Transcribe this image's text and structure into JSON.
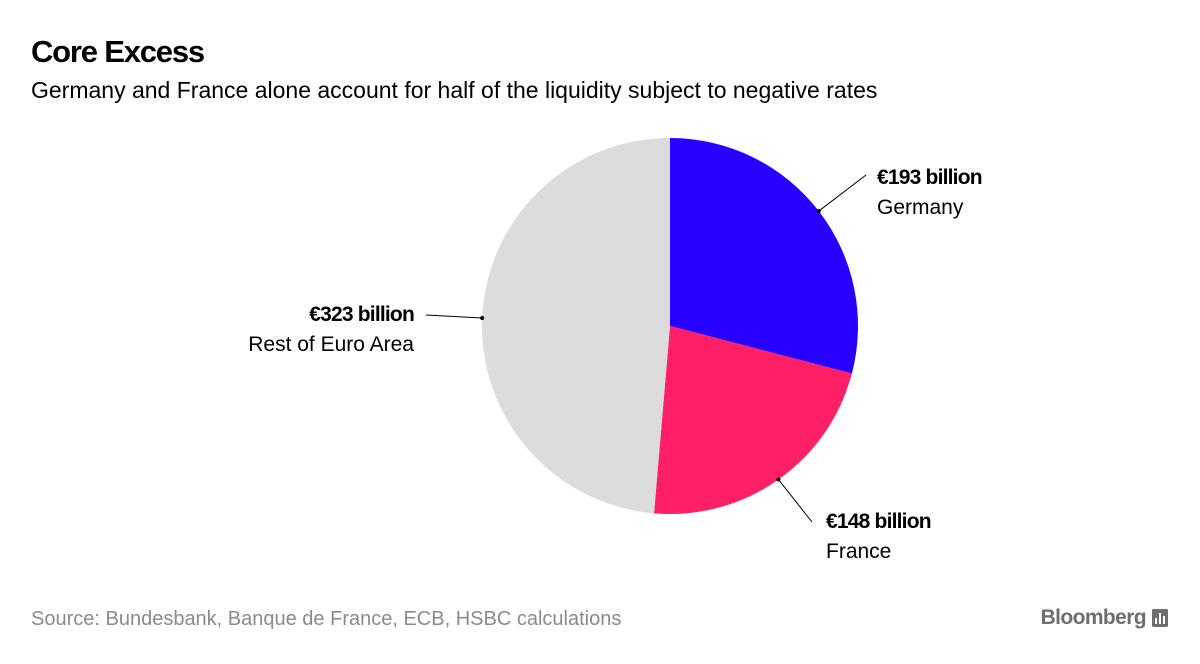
{
  "title": "Core Excess",
  "subtitle": "Germany and France alone account for half of the liquidity subject to negative rates",
  "source": "Source: Bundesbank, Banque de France, ECB, HSBC calculations",
  "brand": "Bloomberg",
  "brand_icon": "bloomberg-chart-icon",
  "chart_data": {
    "type": "pie",
    "unit": "€ billion",
    "start_angle_deg": 0,
    "direction": "clockwise",
    "slices": [
      {
        "label": "Germany",
        "value": 193,
        "value_label": "€193 billion",
        "color": "#2800ff"
      },
      {
        "label": "France",
        "value": 148,
        "value_label": "€148 billion",
        "color": "#ff1f66"
      },
      {
        "label": "Rest of Euro Area",
        "value": 323,
        "value_label": "€323 billion",
        "color": "#dcdcdc"
      }
    ]
  }
}
